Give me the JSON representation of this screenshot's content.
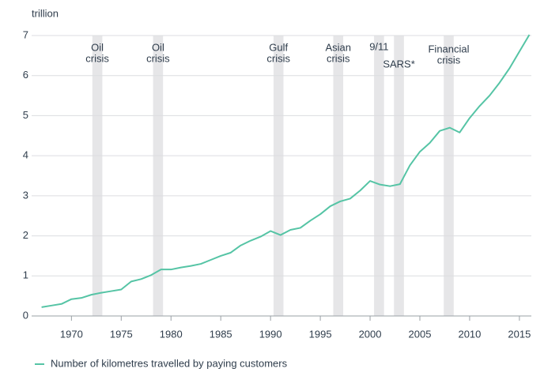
{
  "chart_data": {
    "type": "line",
    "y_label": "trillion",
    "x": [
      1967,
      1968,
      1969,
      1970,
      1971,
      1972,
      1973,
      1974,
      1975,
      1976,
      1977,
      1978,
      1979,
      1980,
      1981,
      1982,
      1983,
      1984,
      1985,
      1986,
      1987,
      1988,
      1989,
      1990,
      1991,
      1992,
      1993,
      1994,
      1995,
      1996,
      1997,
      1998,
      1999,
      2000,
      2001,
      2002,
      2003,
      2004,
      2005,
      2006,
      2007,
      2008,
      2009,
      2010,
      2011,
      2012,
      2013,
      2014,
      2015,
      2016
    ],
    "series": [
      {
        "name": "Number of kilometres travelled by paying customers",
        "color": "#55c4a5",
        "values": [
          0.22,
          0.26,
          0.3,
          0.42,
          0.45,
          0.53,
          0.58,
          0.62,
          0.66,
          0.86,
          0.92,
          1.02,
          1.16,
          1.16,
          1.21,
          1.25,
          1.3,
          1.4,
          1.5,
          1.58,
          1.76,
          1.88,
          1.98,
          2.12,
          2.02,
          2.15,
          2.2,
          2.38,
          2.54,
          2.74,
          2.86,
          2.93,
          3.13,
          3.37,
          3.28,
          3.24,
          3.29,
          3.76,
          4.1,
          4.32,
          4.62,
          4.7,
          4.58,
          4.94,
          5.24,
          5.5,
          5.82,
          6.18,
          6.6,
          7.02
        ]
      }
    ],
    "events": [
      {
        "label": [
          "Oil",
          "crisis"
        ],
        "start": 1972.1,
        "end": 1973.1
      },
      {
        "label": [
          "Oil",
          "crisis"
        ],
        "start": 1978.2,
        "end": 1979.2
      },
      {
        "label": [
          "Gulf",
          "crisis"
        ],
        "start": 1990.3,
        "end": 1991.3
      },
      {
        "label": [
          "Asian",
          "crisis"
        ],
        "start": 1996.3,
        "end": 1997.3
      },
      {
        "label": [
          "9/11"
        ],
        "start": 2000.4,
        "end": 2001.4
      },
      {
        "label": [
          "SARS*"
        ],
        "start": 2002.4,
        "end": 2003.4
      },
      {
        "label": [
          "Financial",
          "crisis"
        ],
        "start": 2007.4,
        "end": 2008.4
      }
    ],
    "band_color": "#e6e6e8",
    "xlim": [
      1966,
      2016.2
    ],
    "xticks": [
      1970,
      1975,
      1980,
      1985,
      1990,
      1995,
      2000,
      2005,
      2010,
      2015
    ],
    "ylim": [
      0,
      7
    ],
    "yticks": [
      0,
      1,
      2,
      3,
      4,
      5,
      6,
      7
    ],
    "grid": true
  }
}
